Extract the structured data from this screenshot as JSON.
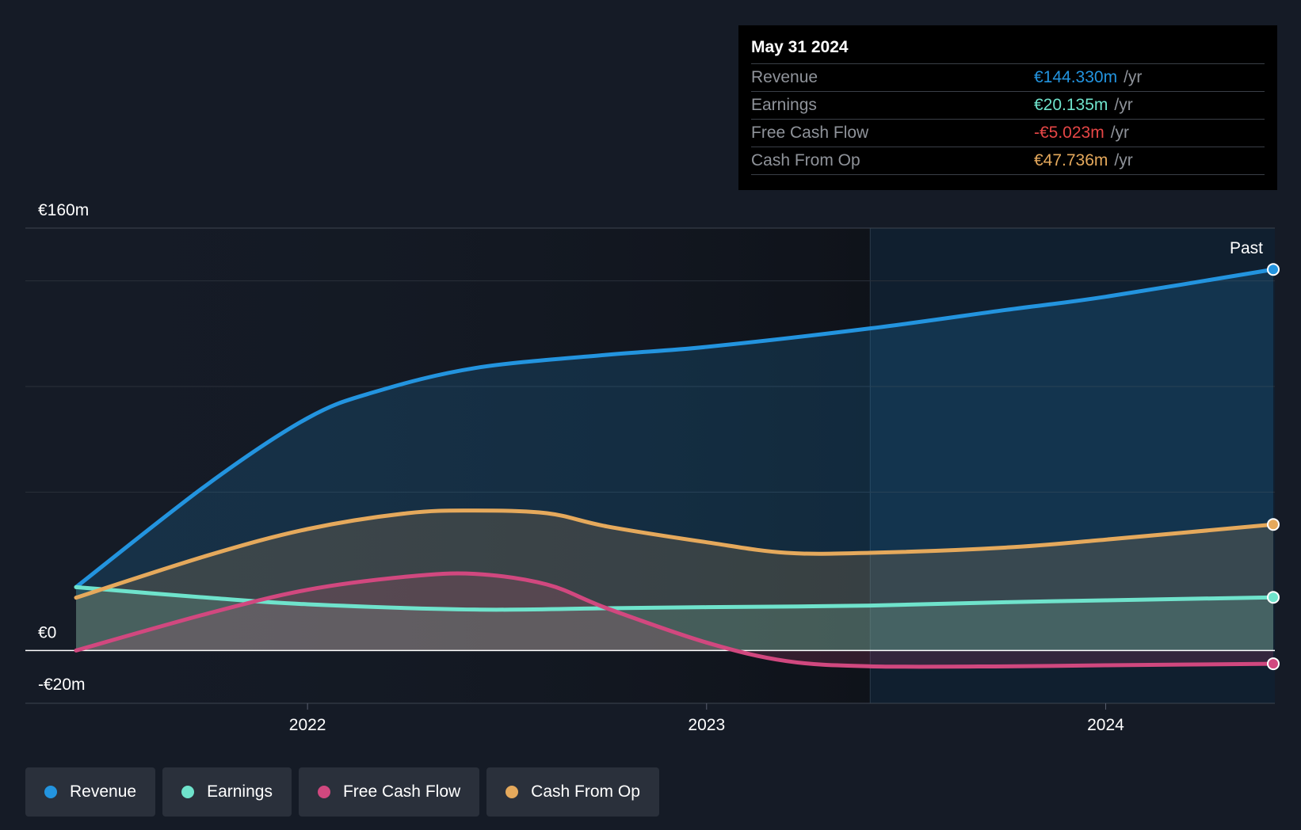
{
  "chart_data": {
    "type": "area",
    "x_ticks": [
      "2022",
      "2023",
      "2024"
    ],
    "y_labels": {
      "top": "€160m",
      "zero": "€0",
      "bottom": "-€20m"
    },
    "ylim": [
      -20,
      160
    ],
    "xlim": [
      2021.42,
      2024.42
    ],
    "forecast_divider_x": 2023.41,
    "past_label": "Past",
    "series": [
      {
        "name": "Revenue",
        "color": "#2394df",
        "points": [
          [
            2021.42,
            24
          ],
          [
            2021.75,
            63
          ],
          [
            2022.0,
            88
          ],
          [
            2022.17,
            98
          ],
          [
            2022.42,
            107
          ],
          [
            2022.75,
            112
          ],
          [
            2023.0,
            115
          ],
          [
            2023.41,
            122
          ],
          [
            2023.75,
            129
          ],
          [
            2024.0,
            134
          ],
          [
            2024.42,
            144.33
          ]
        ]
      },
      {
        "name": "Earnings",
        "color": "#6fe3cc",
        "points": [
          [
            2021.42,
            24
          ],
          [
            2021.75,
            20
          ],
          [
            2022.0,
            17.5
          ],
          [
            2022.42,
            15.5
          ],
          [
            2022.75,
            16
          ],
          [
            2023.0,
            16.4
          ],
          [
            2023.41,
            17
          ],
          [
            2023.75,
            18.3
          ],
          [
            2024.0,
            19
          ],
          [
            2024.42,
            20.135
          ]
        ]
      },
      {
        "name": "Free Cash Flow",
        "color": "#d1487f",
        "points": [
          [
            2021.42,
            0
          ],
          [
            2021.75,
            14
          ],
          [
            2022.0,
            23
          ],
          [
            2022.25,
            28
          ],
          [
            2022.42,
            29
          ],
          [
            2022.6,
            25
          ],
          [
            2022.75,
            16
          ],
          [
            2023.0,
            3
          ],
          [
            2023.2,
            -4
          ],
          [
            2023.41,
            -6
          ],
          [
            2023.75,
            -6
          ],
          [
            2024.0,
            -5.6
          ],
          [
            2024.42,
            -5.023
          ]
        ]
      },
      {
        "name": "Cash From Op",
        "color": "#e5a95c",
        "points": [
          [
            2021.42,
            20
          ],
          [
            2021.75,
            36
          ],
          [
            2022.0,
            46
          ],
          [
            2022.25,
            52
          ],
          [
            2022.42,
            53
          ],
          [
            2022.6,
            52
          ],
          [
            2022.75,
            47
          ],
          [
            2023.0,
            41
          ],
          [
            2023.2,
            37
          ],
          [
            2023.41,
            37
          ],
          [
            2023.75,
            39
          ],
          [
            2024.0,
            42
          ],
          [
            2024.42,
            47.736
          ]
        ]
      }
    ]
  },
  "tooltip": {
    "date": "May 31 2024",
    "rows": [
      {
        "label": "Revenue",
        "value": "€144.330m",
        "unit": "/yr",
        "color": "#2394df"
      },
      {
        "label": "Earnings",
        "value": "€20.135m",
        "unit": "/yr",
        "color": "#6fe3cc"
      },
      {
        "label": "Free Cash Flow",
        "value": "-€5.023m",
        "unit": "/yr",
        "color": "#e64646"
      },
      {
        "label": "Cash From Op",
        "value": "€47.736m",
        "unit": "/yr",
        "color": "#e5a95c"
      }
    ]
  },
  "legend": [
    {
      "label": "Revenue",
      "color": "#2394df"
    },
    {
      "label": "Earnings",
      "color": "#6fe3cc"
    },
    {
      "label": "Free Cash Flow",
      "color": "#d1487f"
    },
    {
      "label": "Cash From Op",
      "color": "#e5a95c"
    }
  ]
}
